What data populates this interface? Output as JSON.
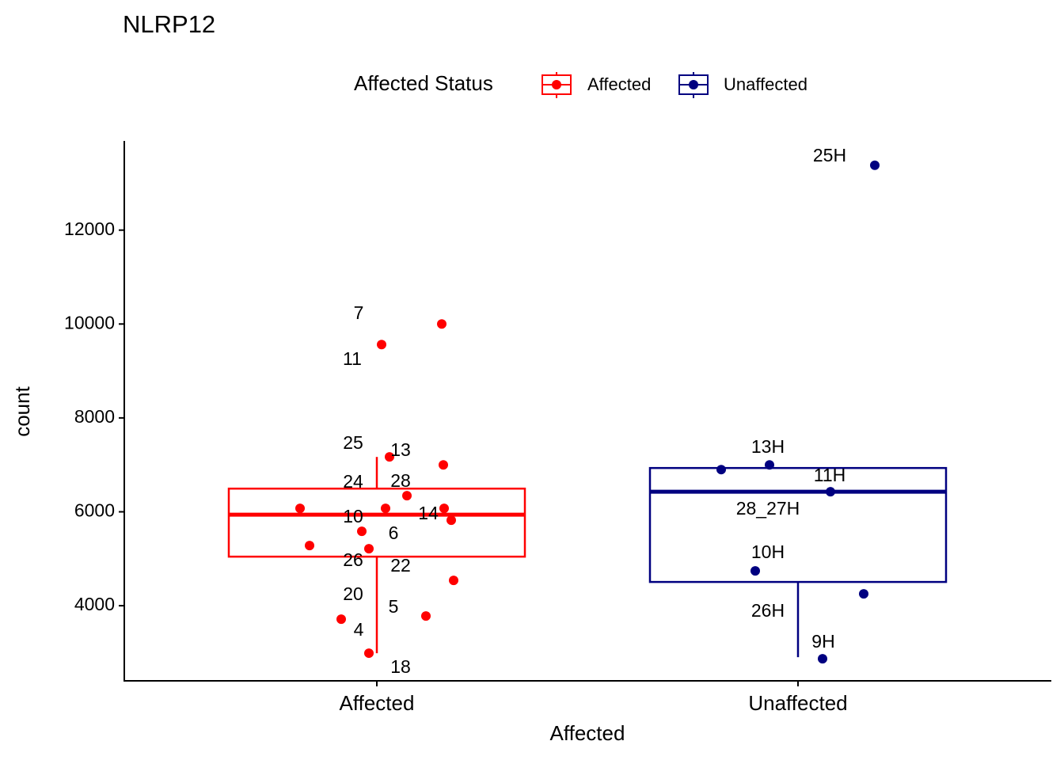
{
  "chart_data": {
    "type": "box",
    "title": "NLRP12",
    "x_label": "Affected",
    "y_label": "count",
    "legend_title": "Affected Status",
    "legend_position": "top",
    "categories": [
      "Affected",
      "Unaffected"
    ],
    "ylim": [
      2400,
      13900
    ],
    "yticks": [
      4000,
      6000,
      8000,
      10000,
      12000
    ],
    "series": [
      {
        "name": "Affected",
        "color": "#ff0000",
        "box": {
          "whisker_low": 2989,
          "q1": 5045,
          "median": 5938,
          "q3": 6494,
          "whisker_high": 7169
        },
        "points": {
          "values": [
            10000,
            9562,
            7169,
            7000,
            6343,
            6073,
            6073,
            6073,
            5820,
            5584,
            5281,
            5214,
            4539,
            3781,
            3713,
            2989
          ],
          "labels": [
            "7",
            "11",
            "13",
            "25",
            "28",
            null,
            "24",
            "14",
            "10",
            "6",
            "26",
            "22",
            "20",
            "5",
            "4",
            "18"
          ]
        }
      },
      {
        "name": "Unaffected",
        "color": "#000080",
        "box": {
          "whisker_low": 2904,
          "q1": 4506,
          "median": 6427,
          "q3": 6933,
          "whisker_high": 6933
        },
        "points": {
          "values": [
            13382,
            7000,
            6899,
            6427,
            4741,
            4253,
            2870
          ],
          "labels": [
            "25H",
            "13H",
            "28_27H",
            "11H",
            "10H",
            "26H",
            "9H"
          ]
        }
      }
    ]
  }
}
